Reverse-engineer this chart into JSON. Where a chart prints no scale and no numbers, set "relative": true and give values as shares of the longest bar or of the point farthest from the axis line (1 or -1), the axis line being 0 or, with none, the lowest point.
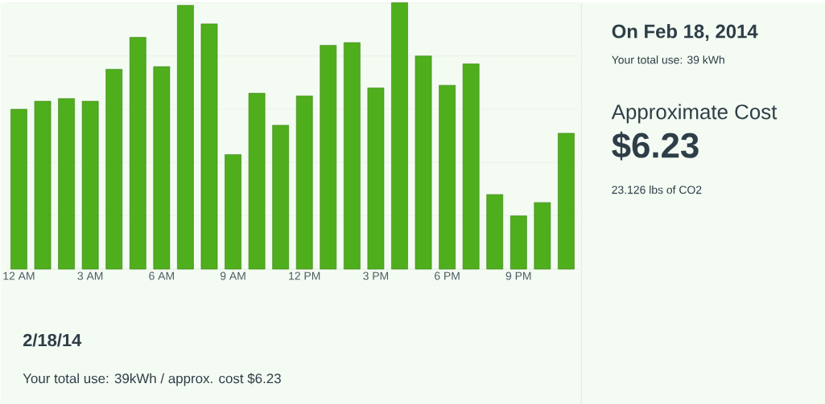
{
  "chart_data": {
    "type": "bar",
    "title": "2/18/14",
    "subtitle": "Your total use: 39kWh / approx. cost $6.23",
    "categories": [
      "12 AM",
      null,
      null,
      "3 AM",
      null,
      null,
      "6 AM",
      null,
      null,
      "9 AM",
      null,
      null,
      "12 PM",
      null,
      null,
      "3 PM",
      null,
      null,
      "6 PM",
      null,
      null,
      "9 PM",
      null,
      null
    ],
    "values": [
      0.6,
      0.63,
      0.64,
      0.63,
      0.75,
      0.87,
      0.76,
      0.99,
      0.92,
      0.43,
      0.66,
      0.54,
      0.65,
      0.84,
      0.85,
      0.68,
      1,
      0.8,
      0.69,
      0.77,
      0.28,
      0.2,
      0.25,
      0.51
    ],
    "color": "#4fae1c",
    "relative": true,
    "grid": "y",
    "tick_labels": "x",
    "annotations": [
      "On Feb 18, 2014",
      "Your total use: 39 kWh",
      "Approximate Cost",
      "$6.23",
      "23.126 lbs of CO2"
    ]
  }
}
